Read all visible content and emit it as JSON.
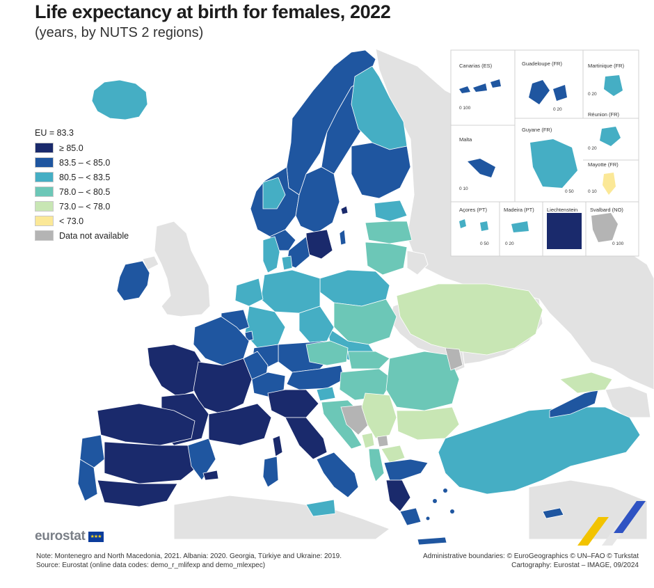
{
  "title": "Life expectancy at birth for females, 2022",
  "subtitle": "(years, by NUTS 2 regions)",
  "legend": {
    "eu_average": "EU = 83.3",
    "classes": [
      {
        "label": "≥ 85.0",
        "color": "#1a2a6c"
      },
      {
        "label": "83.5 – < 85.0",
        "color": "#1f56a0"
      },
      {
        "label": "80.5 – < 83.5",
        "color": "#45aec4"
      },
      {
        "label": "78.0 – < 80.5",
        "color": "#6cc7b7"
      },
      {
        "label": "73.0 – < 78.0",
        "color": "#c8e6b4"
      },
      {
        "label": "< 73.0",
        "color": "#fbe897"
      },
      {
        "label": "Data not available",
        "color": "#b4b4b4"
      }
    ]
  },
  "colors": {
    "land_nodata": "#e2e2e2",
    "sea": "#ffffff",
    "border": "#ffffff"
  },
  "insets": {
    "canarias": {
      "label": "Canarias (ES)",
      "scale": "0    100"
    },
    "guadeloupe": {
      "label": "Guadeloupe (FR)",
      "scale": "0    20"
    },
    "martinique": {
      "label": "Martinique (FR)",
      "scale": "0    20"
    },
    "reunion": {
      "label": "Réunion (FR)",
      "scale": "0    20"
    },
    "malta": {
      "label": "Malta",
      "scale": "0    10"
    },
    "guyane": {
      "label": "Guyane (FR)",
      "scale": "0    50"
    },
    "mayotte": {
      "label": "Mayotte (FR)",
      "scale": "0    10"
    },
    "acores": {
      "label": "Açores (PT)",
      "scale": "0    50"
    },
    "madeira": {
      "label": "Madeira (PT)",
      "scale": "0    20"
    },
    "liechtenstein": {
      "label": "Liechtenstein",
      "scale": ""
    },
    "svalbard": {
      "label": "Svalbard (NO)",
      "scale": "0    100"
    }
  },
  "logo": {
    "text": "eurostat",
    "flag_stars": "★★★"
  },
  "note": {
    "line1": "Note: Montenegro and North Macedonia, 2021. Albania: 2020. Georgia, Türkiye and Ukraine: 2019.",
    "line2": "Source: Eurostat (online data codes: demo_r_mlifexp and demo_mlexpec)"
  },
  "credits": {
    "line1": "Administrative boundaries: © EuroGeographics © UN–FAO © Turkstat",
    "line2": "Cartography: Eurostat – IMAGE, 09/2024"
  }
}
